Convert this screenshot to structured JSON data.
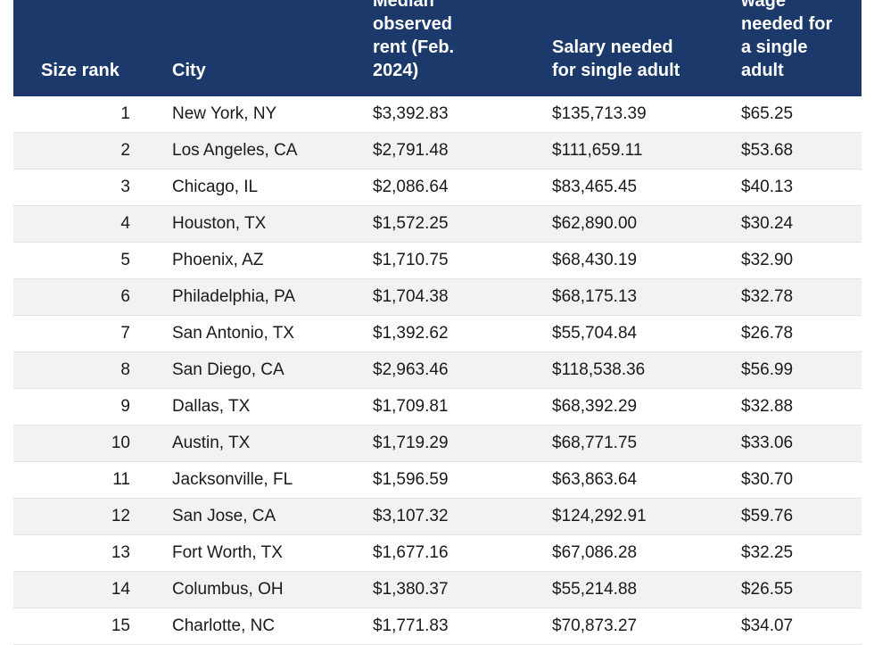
{
  "table": {
    "headers": {
      "rank": "Size rank",
      "city": "City",
      "rent": [
        "Median",
        "observed",
        "rent (Feb.",
        "2024)"
      ],
      "salary": [
        "Salary needed",
        "for single adult"
      ],
      "wage": [
        "wage",
        "needed for",
        "a single",
        "adult"
      ]
    },
    "colors": {
      "header_bg": "#1b3a6b",
      "header_text": "#ffffff",
      "stripe": "#f2f2f2"
    },
    "rows": [
      {
        "rank": "1",
        "city": "New York, NY",
        "rent": "$3,392.83",
        "salary": "$135,713.39",
        "wage": "$65.25"
      },
      {
        "rank": "2",
        "city": "Los Angeles, CA",
        "rent": "$2,791.48",
        "salary": "$111,659.11",
        "wage": "$53.68"
      },
      {
        "rank": "3",
        "city": "Chicago, IL",
        "rent": "$2,086.64",
        "salary": "$83,465.45",
        "wage": "$40.13"
      },
      {
        "rank": "4",
        "city": "Houston, TX",
        "rent": "$1,572.25",
        "salary": "$62,890.00",
        "wage": "$30.24"
      },
      {
        "rank": "5",
        "city": "Phoenix, AZ",
        "rent": "$1,710.75",
        "salary": "$68,430.19",
        "wage": "$32.90"
      },
      {
        "rank": "6",
        "city": "Philadelphia, PA",
        "rent": "$1,704.38",
        "salary": "$68,175.13",
        "wage": "$32.78"
      },
      {
        "rank": "7",
        "city": "San Antonio, TX",
        "rent": "$1,392.62",
        "salary": "$55,704.84",
        "wage": "$26.78"
      },
      {
        "rank": "8",
        "city": "San Diego, CA",
        "rent": "$2,963.46",
        "salary": "$118,538.36",
        "wage": "$56.99"
      },
      {
        "rank": "9",
        "city": "Dallas, TX",
        "rent": "$1,709.81",
        "salary": "$68,392.29",
        "wage": "$32.88"
      },
      {
        "rank": "10",
        "city": "Austin, TX",
        "rent": "$1,719.29",
        "salary": "$68,771.75",
        "wage": "$33.06"
      },
      {
        "rank": "11",
        "city": "Jacksonville, FL",
        "rent": "$1,596.59",
        "salary": "$63,863.64",
        "wage": "$30.70"
      },
      {
        "rank": "12",
        "city": "San Jose, CA",
        "rent": "$3,107.32",
        "salary": "$124,292.91",
        "wage": "$59.76"
      },
      {
        "rank": "13",
        "city": "Fort Worth, TX",
        "rent": "$1,677.16",
        "salary": "$67,086.28",
        "wage": "$32.25"
      },
      {
        "rank": "14",
        "city": "Columbus, OH",
        "rent": "$1,380.37",
        "salary": "$55,214.88",
        "wage": "$26.55"
      },
      {
        "rank": "15",
        "city": "Charlotte, NC",
        "rent": "$1,771.83",
        "salary": "$70,873.27",
        "wage": "$34.07"
      }
    ]
  }
}
